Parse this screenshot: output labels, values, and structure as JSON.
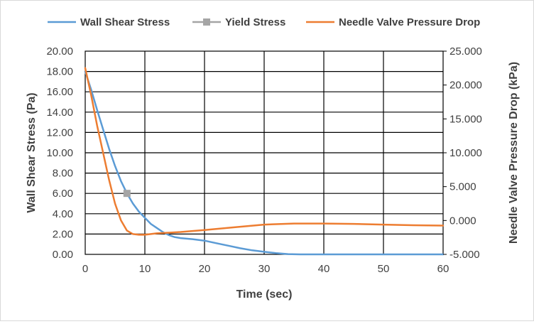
{
  "chart_data": {
    "type": "line",
    "title": "",
    "xlabel": "Time (sec)",
    "ylabel": "Wall Shear Stress (Pa)",
    "y2label": "Needle Valve Pressure Drop (kPa)",
    "xlim": [
      0,
      60
    ],
    "ylim": [
      0,
      20
    ],
    "y2lim": [
      -5,
      25
    ],
    "x_ticks": [
      "0",
      "10",
      "20",
      "30",
      "40",
      "50",
      "60"
    ],
    "y_ticks": [
      "0.00",
      "2.00",
      "4.00",
      "6.00",
      "8.00",
      "10.00",
      "12.00",
      "14.00",
      "16.00",
      "18.00",
      "20.00"
    ],
    "y2_ticks": [
      "-5.000",
      "0.000",
      "5.000",
      "10.000",
      "15.000",
      "20.000",
      "25.000"
    ],
    "grid": true,
    "legend_position": "top",
    "series": [
      {
        "name": "Wall Shear Stress",
        "axis": "left",
        "color": "#5b9bd5",
        "marker": "none",
        "x": [
          0,
          1,
          2,
          3,
          4,
          5,
          6,
          7,
          8,
          9,
          10,
          11,
          12,
          13,
          14,
          15,
          16,
          18,
          20,
          22,
          24,
          26,
          28,
          30,
          32,
          34,
          36,
          38,
          40,
          45,
          50,
          55,
          60
        ],
        "y": [
          18.0,
          16.2,
          14.2,
          12.3,
          10.4,
          8.7,
          7.2,
          6.0,
          5.0,
          4.2,
          3.6,
          3.0,
          2.6,
          2.2,
          1.9,
          1.7,
          1.6,
          1.5,
          1.35,
          1.1,
          0.85,
          0.6,
          0.4,
          0.25,
          0.12,
          0.03,
          0.0,
          0.0,
          0.0,
          0.0,
          0.0,
          0.0,
          0.0
        ]
      },
      {
        "name": "Yield Stress",
        "axis": "left",
        "color": "#a5a5a5",
        "marker": "square",
        "x": [
          7
        ],
        "y": [
          6.0
        ]
      },
      {
        "name": "Needle Valve Pressure Drop",
        "axis": "right",
        "color": "#ed7d31",
        "marker": "none",
        "x": [
          0,
          1,
          2,
          3,
          4,
          5,
          6,
          7,
          8,
          9,
          10,
          11,
          12,
          14,
          16,
          20,
          25,
          30,
          35,
          40,
          45,
          50,
          55,
          60
        ],
        "y": [
          22.5,
          18.5,
          14.0,
          10.0,
          6.0,
          2.5,
          0.0,
          -1.5,
          -2.0,
          -2.1,
          -2.1,
          -2.0,
          -1.9,
          -1.8,
          -1.7,
          -1.4,
          -1.0,
          -0.6,
          -0.45,
          -0.45,
          -0.5,
          -0.6,
          -0.7,
          -0.75
        ]
      }
    ]
  }
}
